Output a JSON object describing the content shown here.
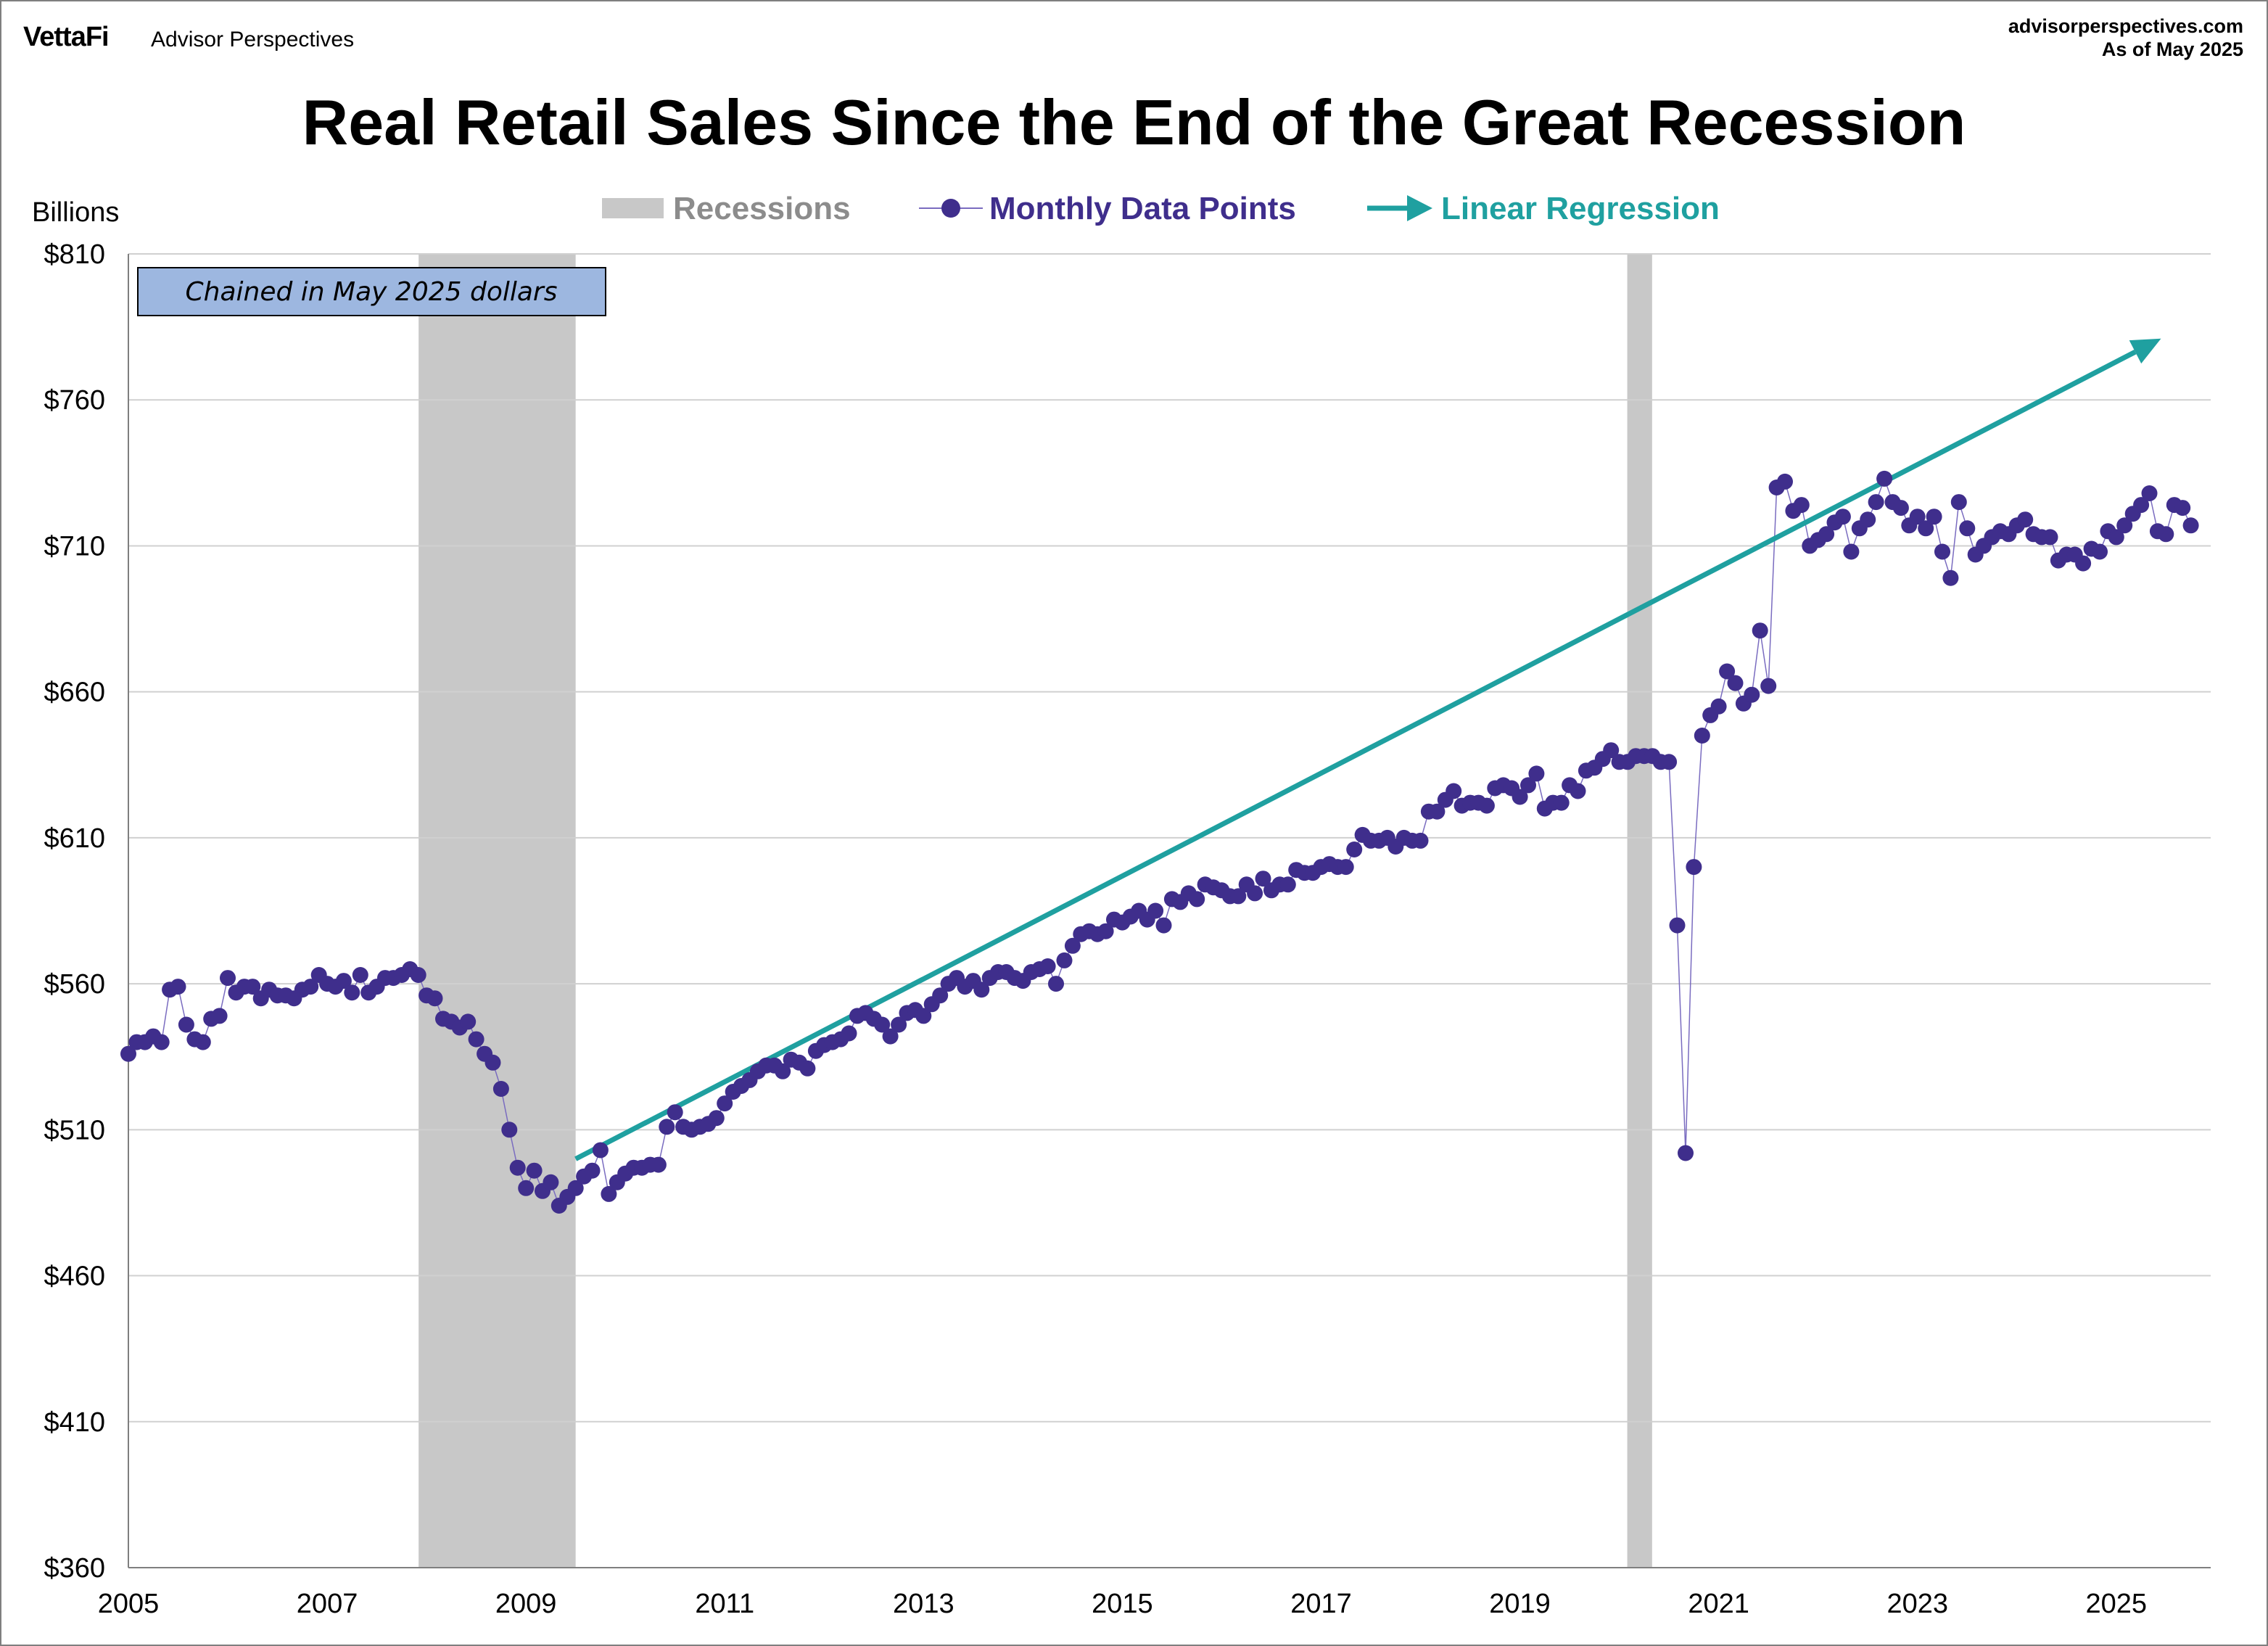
{
  "header": {
    "logo_text": "VettaFi",
    "brand_sub": "Advisor Perspectives",
    "source_url": "advisorperspectives.com",
    "as_of": "As of May 2025"
  },
  "chart_data": {
    "type": "line",
    "title": "Real Retail Sales Since the End of the Great Recession",
    "ylabel": "Billions",
    "xlabel": "",
    "note": "Chained in May 2025 dollars",
    "ylim": [
      360,
      810
    ],
    "xlim": [
      2005,
      2025.95
    ],
    "y_ticks": [
      360,
      410,
      460,
      510,
      560,
      610,
      660,
      710,
      760,
      810
    ],
    "y_tick_labels": [
      "$360",
      "$410",
      "$460",
      "$510",
      "$560",
      "$610",
      "$660",
      "$710",
      "$760",
      "$810"
    ],
    "x_ticks": [
      2005,
      2007,
      2009,
      2011,
      2013,
      2015,
      2017,
      2019,
      2021,
      2023,
      2025
    ],
    "x_tick_labels": [
      "2005",
      "2007",
      "2009",
      "2011",
      "2013",
      "2015",
      "2017",
      "2019",
      "2021",
      "2023",
      "2025"
    ],
    "grid": true,
    "legend": {
      "placement": "top-center",
      "entries": [
        {
          "label": "Recessions",
          "color": "#c8c8c8"
        },
        {
          "label": "Monthly Data Points",
          "color": "#3f2e8c"
        },
        {
          "label": "Linear Regression",
          "color": "#1fa0a0"
        }
      ]
    },
    "recessions": [
      {
        "start": 2007.92,
        "end": 2009.5
      },
      {
        "start": 2020.08,
        "end": 2020.33
      }
    ],
    "regression": {
      "x_start": 2009.5,
      "y_start": 500,
      "x_end": 2025.45,
      "y_end": 781
    },
    "series": [
      {
        "name": "Monthly Data Points",
        "color": "#3f2e8c",
        "start_year": 2005.0,
        "values": [
          536,
          540,
          540,
          542,
          540,
          558,
          559,
          546,
          541,
          540,
          548,
          549,
          562,
          557,
          559,
          559,
          555,
          558,
          556,
          556,
          555,
          558,
          559,
          563,
          560,
          559,
          561,
          557,
          563,
          557,
          559,
          562,
          562,
          563,
          565,
          563,
          556,
          555,
          548,
          547,
          545,
          547,
          541,
          536,
          533,
          524,
          510,
          497,
          490,
          496,
          489,
          492,
          484,
          487,
          490,
          494,
          496,
          503,
          488,
          492,
          495,
          497,
          497,
          498,
          498,
          511,
          516,
          511,
          510,
          511,
          512,
          514,
          519,
          523,
          525,
          527,
          530,
          532,
          532,
          530,
          534,
          533,
          531,
          537,
          539,
          540,
          541,
          543,
          549,
          550,
          548,
          546,
          542,
          546,
          550,
          551,
          549,
          553,
          556,
          560,
          562,
          559,
          561,
          558,
          562,
          564,
          564,
          562,
          561,
          564,
          565,
          566,
          560,
          568,
          573,
          577,
          578,
          577,
          578,
          582,
          581,
          583,
          585,
          582,
          585,
          580,
          589,
          588,
          591,
          589,
          594,
          593,
          592,
          590,
          590,
          594,
          591,
          596,
          592,
          594,
          594,
          599,
          598,
          598,
          600,
          601,
          600,
          600,
          606,
          611,
          609,
          609,
          610,
          607,
          610,
          609,
          609,
          619,
          619,
          623,
          626,
          621,
          622,
          622,
          621,
          627,
          628,
          627,
          624,
          628,
          632,
          620,
          622,
          622,
          628,
          626,
          633,
          634,
          637,
          640,
          636,
          636,
          638,
          638,
          638,
          636,
          636,
          580,
          502,
          600,
          645,
          652,
          655,
          667,
          663,
          656,
          659,
          681,
          662,
          730,
          732,
          722,
          724,
          710,
          712,
          714,
          718,
          720,
          708,
          716,
          719,
          725,
          733,
          725,
          723,
          717,
          720,
          716,
          720,
          708,
          699,
          725,
          716,
          707,
          710,
          713,
          715,
          714,
          717,
          719,
          714,
          713,
          713,
          705,
          707,
          707,
          704,
          709,
          708,
          715,
          713,
          717,
          721,
          724,
          728,
          715,
          714,
          724,
          723,
          717
        ]
      }
    ]
  }
}
